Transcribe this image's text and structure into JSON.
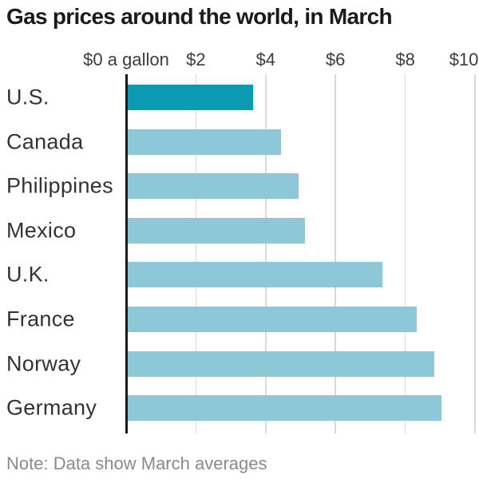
{
  "title": "Gas prices around the world, in March",
  "note": "Note: Data show March averages",
  "axis": {
    "tick_labels": [
      "$0 a gallon",
      "$2",
      "$4",
      "$6",
      "$8",
      "$10"
    ],
    "tick_values": [
      0,
      2,
      4,
      6,
      8,
      10
    ]
  },
  "chart_data": {
    "type": "bar",
    "orientation": "horizontal",
    "title": "Gas prices around the world, in March",
    "categories": [
      "U.S.",
      "Canada",
      "Philippines",
      "Mexico",
      "U.K.",
      "France",
      "Norway",
      "Germany"
    ],
    "values": [
      3.6,
      4.4,
      4.9,
      5.1,
      7.3,
      8.3,
      8.8,
      9.0
    ],
    "unit": "$ per gallon",
    "xlim": [
      0,
      10
    ],
    "x_ticks": [
      0,
      2,
      4,
      6,
      8,
      10
    ],
    "x_tick_labels": [
      "$0 a gallon",
      "$2",
      "$4",
      "$6",
      "$8",
      "$10"
    ],
    "grid": true,
    "legend": "none",
    "highlight_index": 0,
    "note": "Note: Data show March averages"
  },
  "colors": {
    "background": "#ffffff",
    "bar": "#8cc8d8",
    "highlight_bar": "#0a9bb2",
    "axis_line": "#1a1a1a",
    "gridline": "#d9d9d9",
    "title_text": "#1b1b1b",
    "label_text": "#333333",
    "tick_text": "#3c3c3c",
    "note_text": "#8a8a8a"
  }
}
